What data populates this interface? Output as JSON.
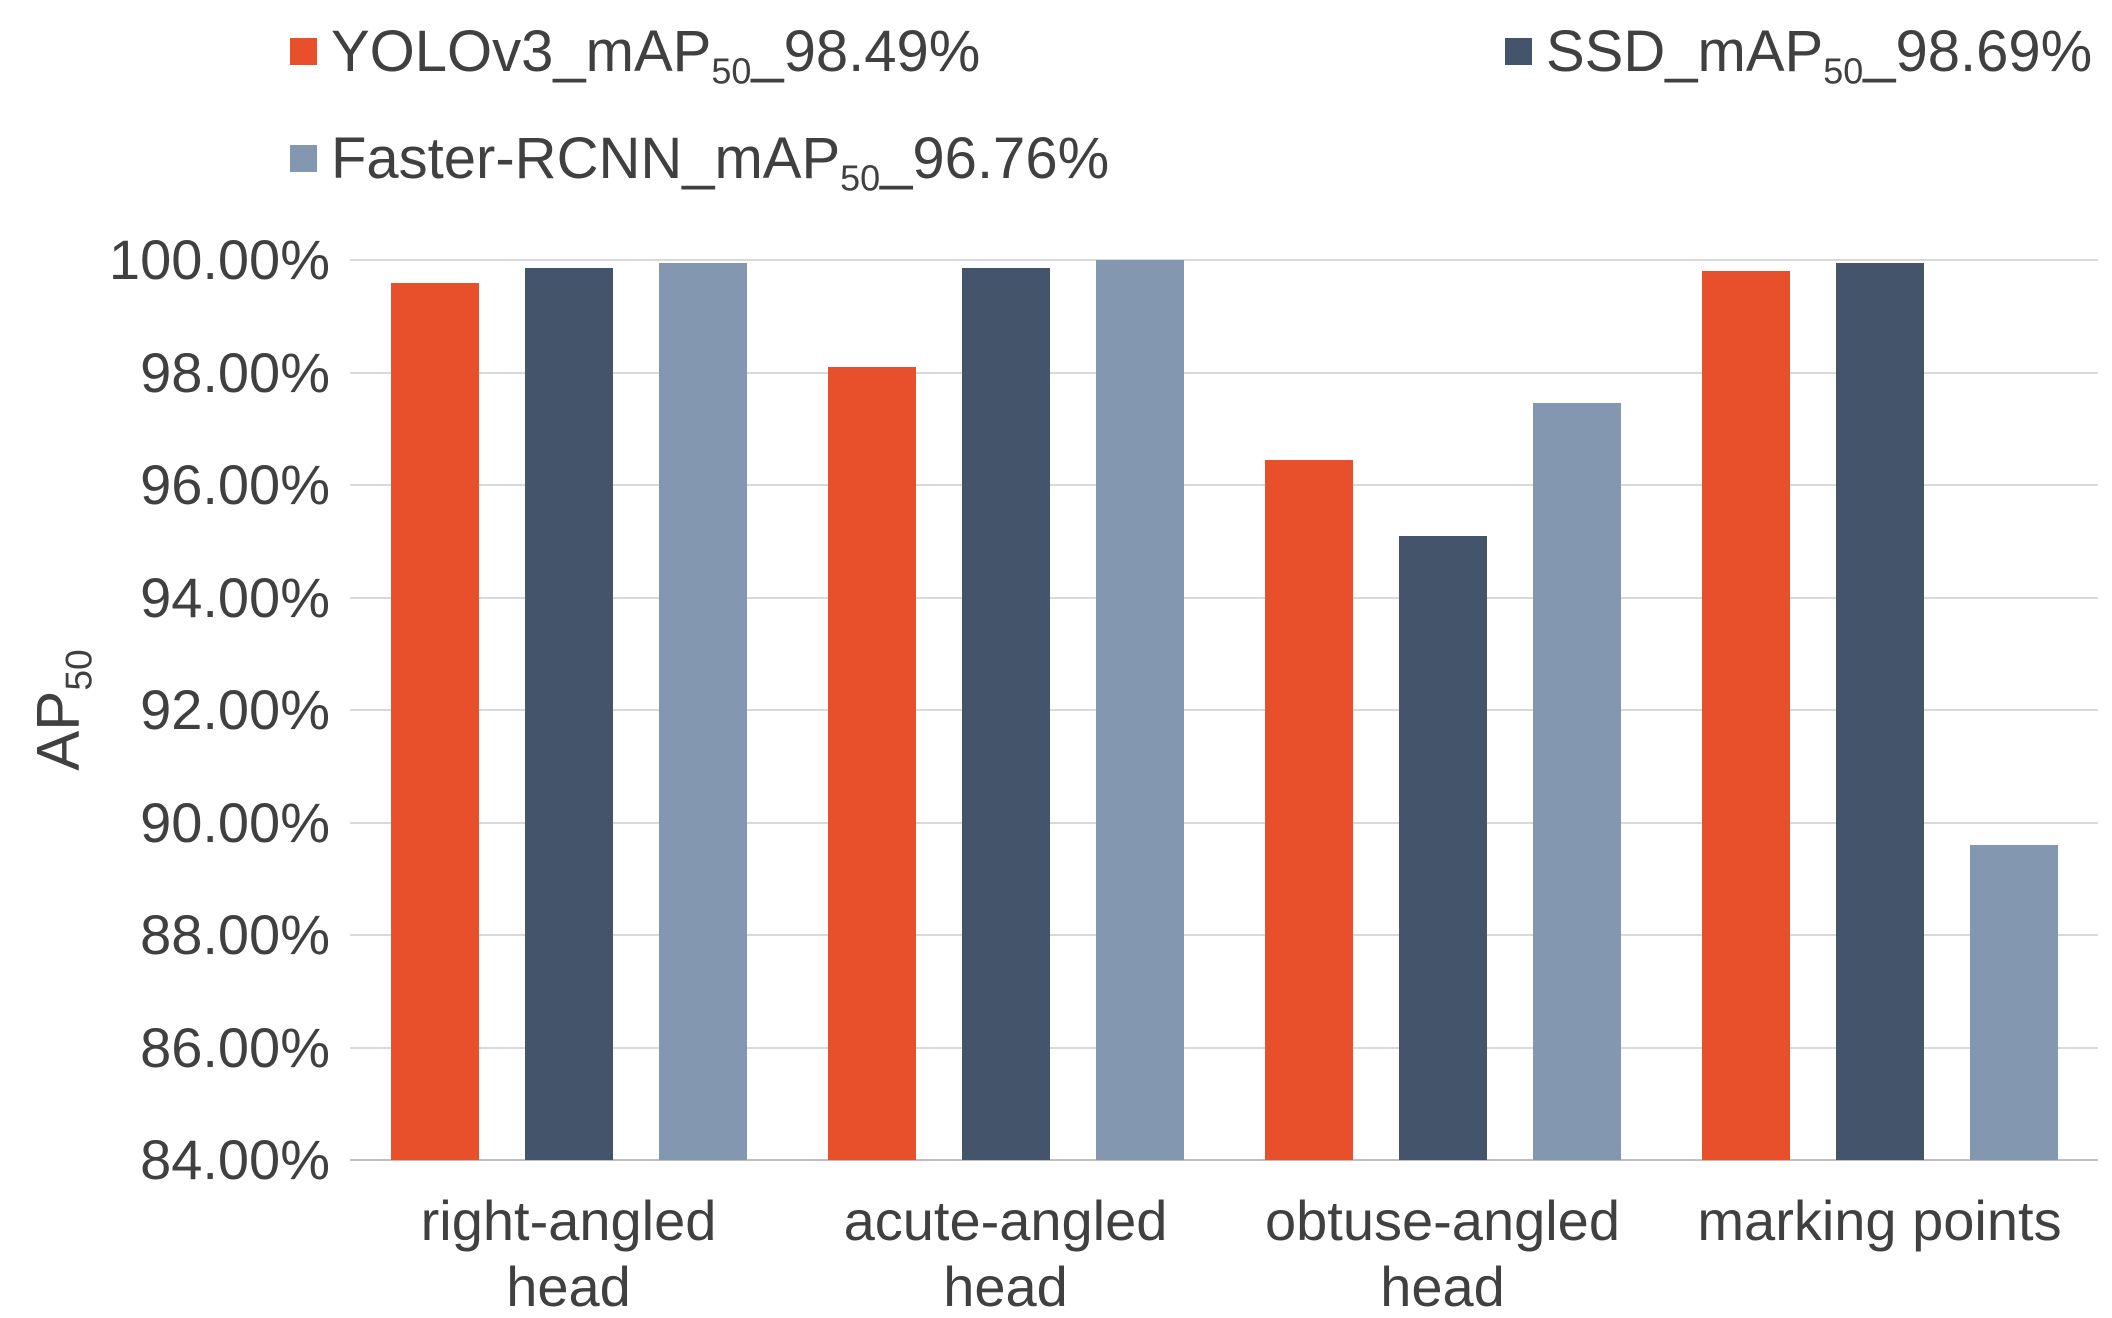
{
  "chart_data": {
    "type": "bar",
    "title": "",
    "ylabel_pre": "AP",
    "ylabel_sub": "50",
    "ylim": [
      84,
      100
    ],
    "ytick_step": 2,
    "ytick_labels": [
      "84.00%",
      "86.00%",
      "88.00%",
      "90.00%",
      "92.00%",
      "94.00%",
      "96.00%",
      "98.00%",
      "100.00%"
    ],
    "categories": [
      "right-angled head",
      "acute-angled head",
      "obtuse-angled head",
      "marking points"
    ],
    "category_lines": [
      [
        "right-angled",
        "head"
      ],
      [
        "acute-angled",
        "head"
      ],
      [
        "obtuse-angled",
        "head"
      ],
      [
        "marking points"
      ]
    ],
    "grid": true,
    "legend_position": "top",
    "background": "#FFFFFF",
    "gridline_color": "#D9D9D9",
    "axis_line_color": "#BFBFBF",
    "text_color": "#404040",
    "series": [
      {
        "name_pre": "YOLOv3_mAP",
        "name_sub": "50",
        "name_post": "_98.49%",
        "color": "#E8502B",
        "values": [
          99.6,
          98.1,
          96.45,
          99.8
        ]
      },
      {
        "name_pre": "SSD_mAP",
        "name_sub": "50",
        "name_post": "_98.69%",
        "color": "#44546A",
        "values": [
          99.85,
          99.85,
          95.1,
          99.95
        ]
      },
      {
        "name_pre": "Faster-RCNN_mAP",
        "name_sub": "50",
        "name_post": "_96.76%",
        "color": "#8497B0",
        "values": [
          99.95,
          100.0,
          97.45,
          89.6
        ]
      }
    ]
  }
}
